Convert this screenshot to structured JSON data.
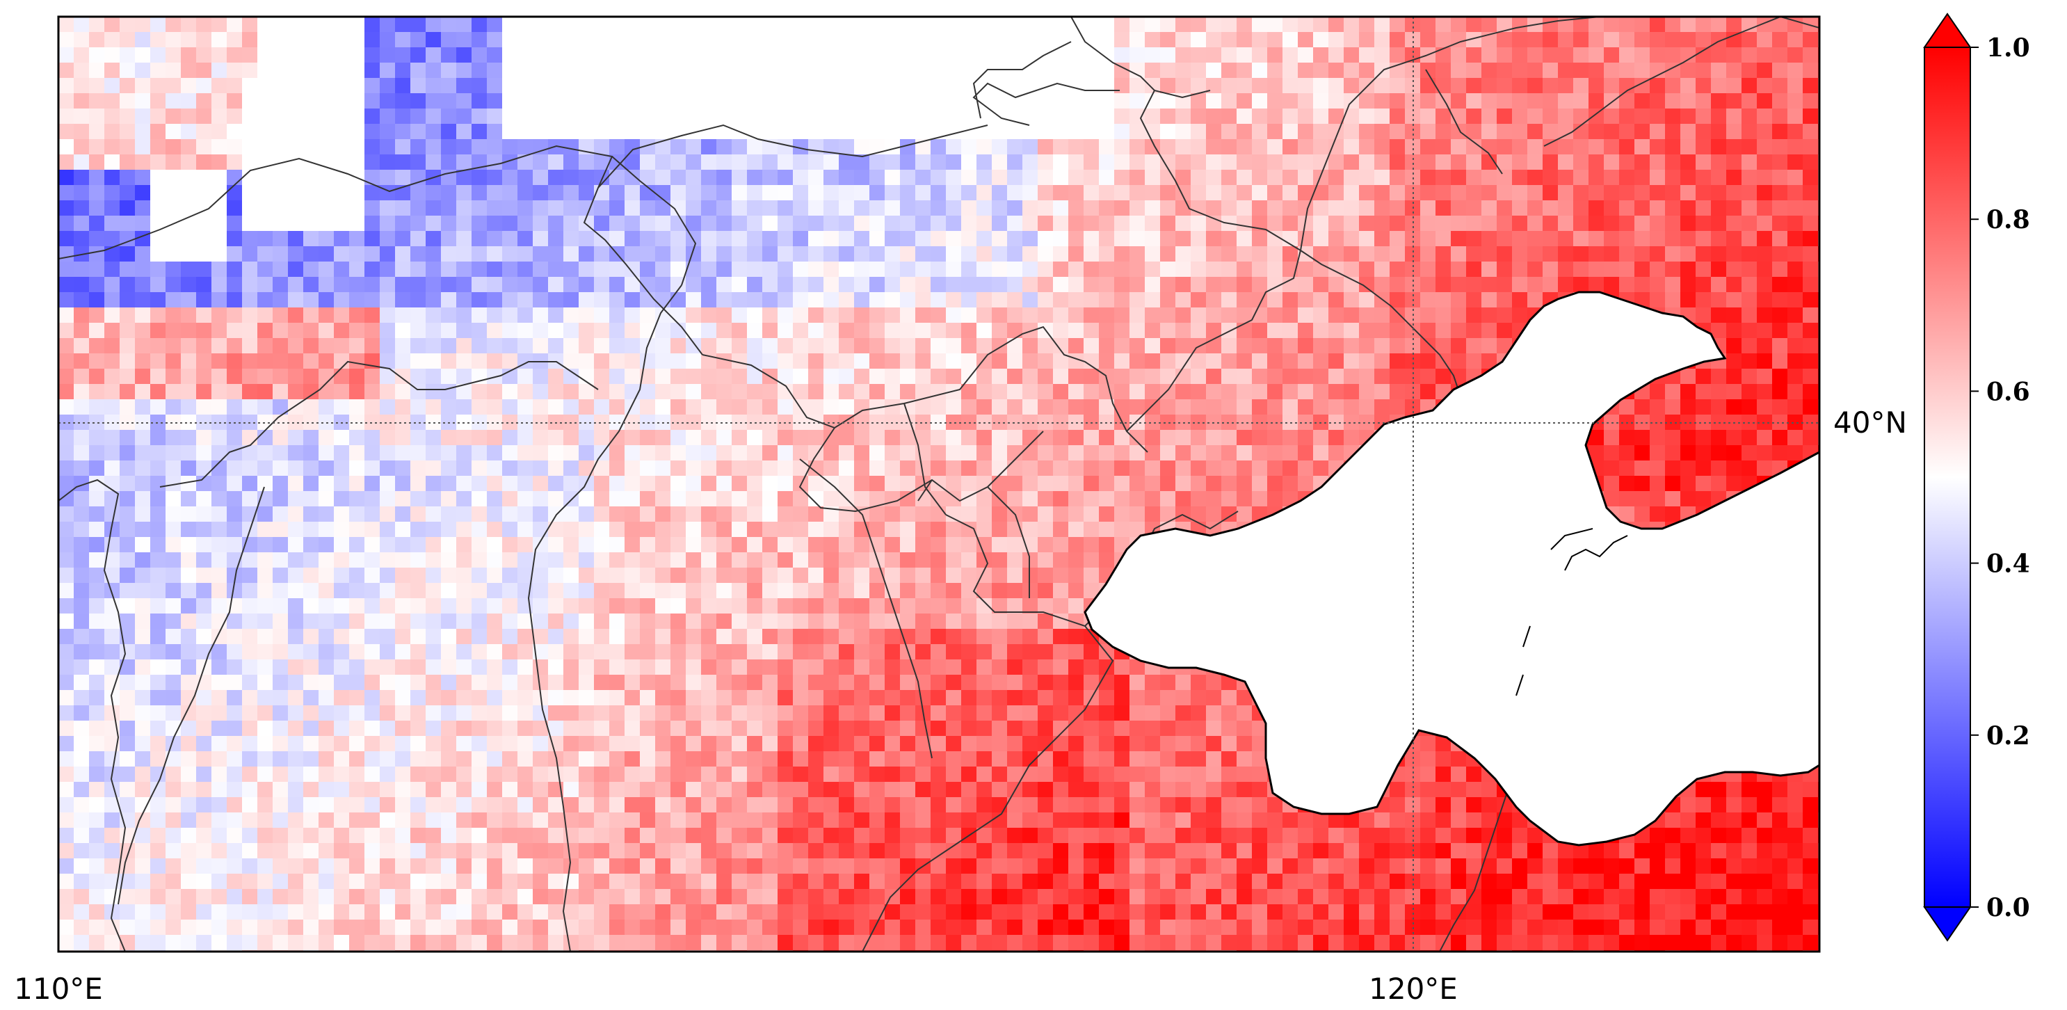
{
  "map": {
    "extent": {
      "lon_min": 110,
      "lon_max": 123,
      "lat_min": 36.2,
      "lat_max": 42.9
    },
    "longitude_labels": [
      "110°E",
      "120°E"
    ],
    "longitude_values": [
      110,
      120
    ],
    "latitude_labels": [
      "40°N"
    ],
    "latitude_values": [
      40
    ],
    "gridlines": "dotted"
  },
  "colorbar": {
    "colormap": "bwr",
    "min": 0.0,
    "max": 1.0,
    "tick_labels": [
      "0.0",
      "0.2",
      "0.4",
      "0.6",
      "0.8",
      "1.0"
    ],
    "tick_values": [
      0.0,
      0.2,
      0.4,
      0.6,
      0.8,
      1.0
    ],
    "extend": "both",
    "colors": {
      "low": "#0000ff",
      "mid": "#ffffff",
      "high": "#ff0000"
    }
  },
  "field": {
    "description_values": "gridded value field 0-1, red higher in south/east, blue lower in north/west",
    "nodata_color": "#ffffff"
  }
}
